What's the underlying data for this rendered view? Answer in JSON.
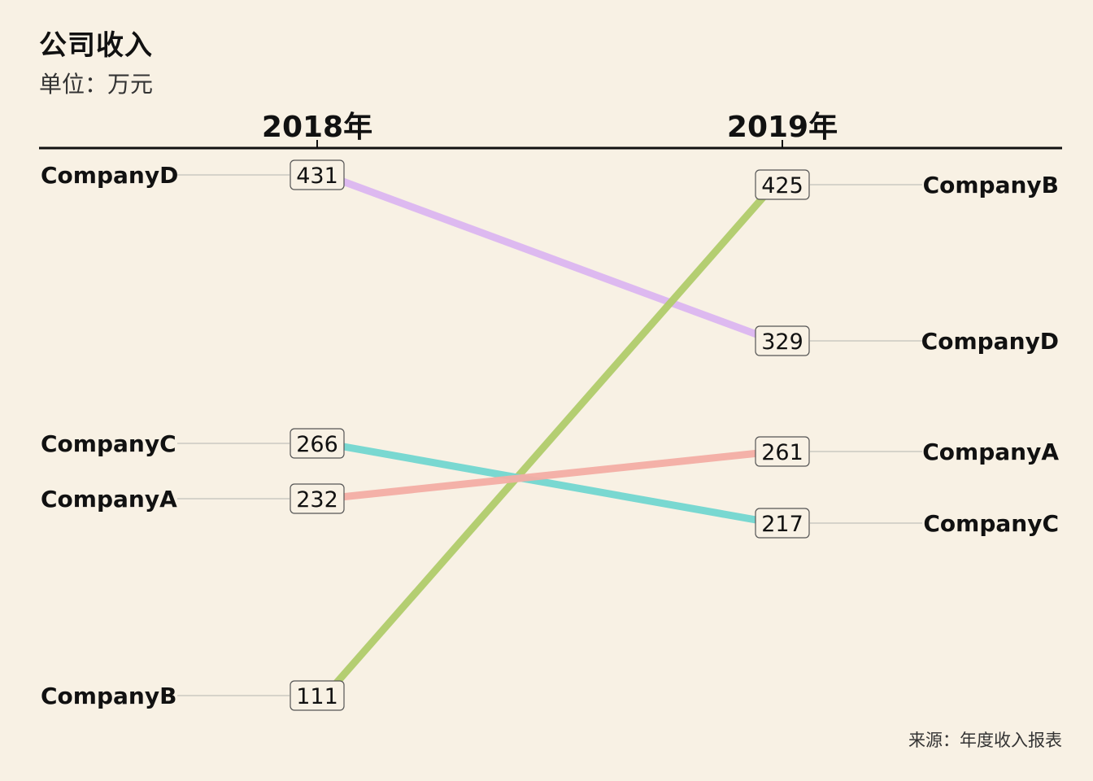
{
  "title": "公司收入",
  "subtitle": "单位：万元",
  "source": "来源：年度收入报表",
  "chart_data": {
    "type": "slope",
    "title": "公司收入",
    "subtitle": "单位：万元",
    "periods": [
      "2018年",
      "2019年"
    ],
    "series": [
      {
        "name": "CompanyD",
        "values": [
          431,
          329
        ],
        "color": "#dbb5f0"
      },
      {
        "name": "CompanyB",
        "values": [
          111,
          425
        ],
        "color": "#b0cb6a"
      },
      {
        "name": "CompanyC",
        "values": [
          266,
          217
        ],
        "color": "#72d6d0"
      },
      {
        "name": "CompanyA",
        "values": [
          232,
          261
        ],
        "color": "#f3ada4"
      }
    ],
    "source": "来源：年度收入报表"
  }
}
